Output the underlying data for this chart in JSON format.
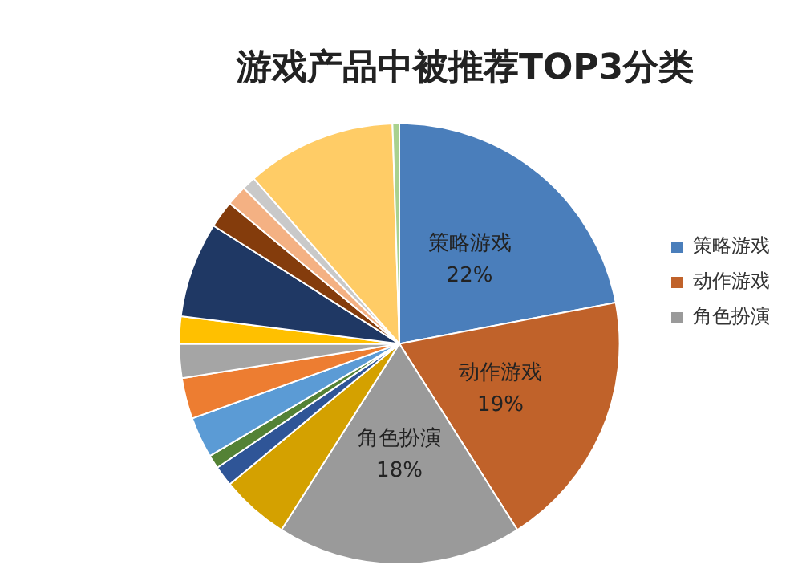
{
  "chart_data": {
    "type": "pie",
    "title": "游戏产品中被推荐TOP3分类",
    "categories": [
      "策略游戏",
      "动作游戏",
      "角色扮演",
      null,
      null,
      null,
      null,
      null,
      null,
      null,
      null,
      null,
      null,
      null,
      null,
      null
    ],
    "values": [
      22,
      19,
      18,
      5,
      1.5,
      1,
      3,
      3,
      2.5,
      2,
      7,
      2,
      1.5,
      1,
      11,
      0.5
    ],
    "colors": [
      "#4a7ebb",
      "#c0622a",
      "#9a9a9a",
      "#d4a100",
      "#2f5597",
      "#548235",
      "#5b9bd5",
      "#ed7d31",
      "#a5a5a5",
      "#ffc000",
      "#1f3864",
      "#843c0c",
      "#f4b183",
      "#c9c9c9",
      "#ffcc66",
      "#a9d18e"
    ],
    "value_labels": [
      "22%",
      "19%",
      "18%",
      null,
      null,
      null,
      null,
      null,
      null,
      null,
      null,
      null,
      null,
      null,
      null,
      null
    ],
    "legend": "right"
  }
}
